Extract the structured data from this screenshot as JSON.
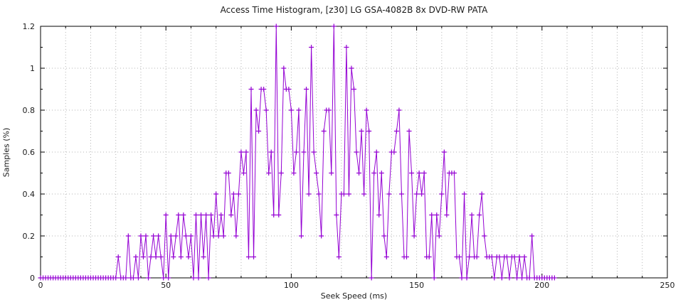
{
  "title": "Access Time Histogram, [z30] LG GSA-4082B 8x DVD-RW PATA",
  "colors": {
    "line": "#9400d3",
    "grid": "#b4b4b4",
    "border": "#000000",
    "text": "#1a1a1a",
    "background": "#ffffff"
  },
  "chart_data": {
    "type": "line",
    "title": "Access Time Histogram, [z30] LG GSA-4082B 8x DVD-RW PATA",
    "xlabel": "Seek Speed (ms)",
    "ylabel": "Samples (%)",
    "xlim": [
      0,
      250
    ],
    "ylim": [
      0,
      1.2
    ],
    "xticks": [
      0,
      50,
      100,
      150,
      200,
      250
    ],
    "xtick_labels": [
      "0",
      "50",
      "100",
      "150",
      "200",
      "250"
    ],
    "yticks": [
      0,
      0.2,
      0.4,
      0.6,
      0.8,
      1,
      1.2
    ],
    "ytick_labels": [
      "0",
      "0.2",
      "0.4",
      "0.6",
      "0.8",
      "1",
      "1.2"
    ],
    "minor_x_step": 10,
    "minor_y_step": 0.1,
    "grid": "dotted minor x (every 10 ms) and major y (every 0.2)",
    "legend_position": "none",
    "marker": "plus",
    "series": [
      {
        "name": "samples",
        "color": "#9400d3",
        "x_start": 0,
        "x_step": 1,
        "values": [
          0,
          0,
          0,
          0,
          0,
          0,
          0,
          0,
          0,
          0,
          0,
          0,
          0,
          0,
          0,
          0,
          0,
          0,
          0,
          0,
          0,
          0,
          0,
          0,
          0,
          0,
          0,
          0,
          0,
          0,
          0,
          0.1,
          0,
          0,
          0,
          0.2,
          0,
          0,
          0.1,
          0,
          0.2,
          0.1,
          0.2,
          0,
          0.1,
          0.2,
          0.1,
          0.2,
          0.1,
          0,
          0.3,
          0,
          0.2,
          0.1,
          0.2,
          0.3,
          0.1,
          0.3,
          0.2,
          0.1,
          0.2,
          0,
          0.3,
          0,
          0.3,
          0.1,
          0.3,
          0,
          0.3,
          0.2,
          0.4,
          0.2,
          0.3,
          0.2,
          0.5,
          0.5,
          0.3,
          0.4,
          0.2,
          0.4,
          0.6,
          0.5,
          0.6,
          0.1,
          0.9,
          0.1,
          0.8,
          0.7,
          0.9,
          0.9,
          0.8,
          0.5,
          0.6,
          0.3,
          1.2,
          0.3,
          0.5,
          1.0,
          0.9,
          0.9,
          0.8,
          0.5,
          0.6,
          0.8,
          0.2,
          0.6,
          0.9,
          0.4,
          1.1,
          0.6,
          0.5,
          0.4,
          0.2,
          0.7,
          0.8,
          0.8,
          0.5,
          1.2,
          0.3,
          0.1,
          0.4,
          0.4,
          1.1,
          0.4,
          1.0,
          0.9,
          0.6,
          0.5,
          0.7,
          0.4,
          0.8,
          0.7,
          0,
          0.5,
          0.6,
          0.3,
          0.5,
          0.2,
          0.1,
          0.4,
          0.6,
          0.6,
          0.7,
          0.8,
          0.4,
          0.1,
          0.1,
          0.7,
          0.5,
          0.2,
          0.4,
          0.5,
          0.4,
          0.5,
          0.1,
          0.1,
          0.3,
          0,
          0.3,
          0.2,
          0.4,
          0.6,
          0.3,
          0.5,
          0.5,
          0.5,
          0.1,
          0.1,
          0,
          0.4,
          0,
          0.1,
          0.3,
          0.1,
          0.1,
          0.3,
          0.4,
          0.2,
          0.1,
          0.1,
          0.1,
          0,
          0.1,
          0.1,
          0,
          0.1,
          0.1,
          0,
          0.1,
          0.1,
          0,
          0.1,
          0,
          0.1,
          0,
          0,
          0.2,
          0,
          0,
          0,
          0,
          0,
          0,
          0,
          0,
          0
        ]
      }
    ]
  }
}
